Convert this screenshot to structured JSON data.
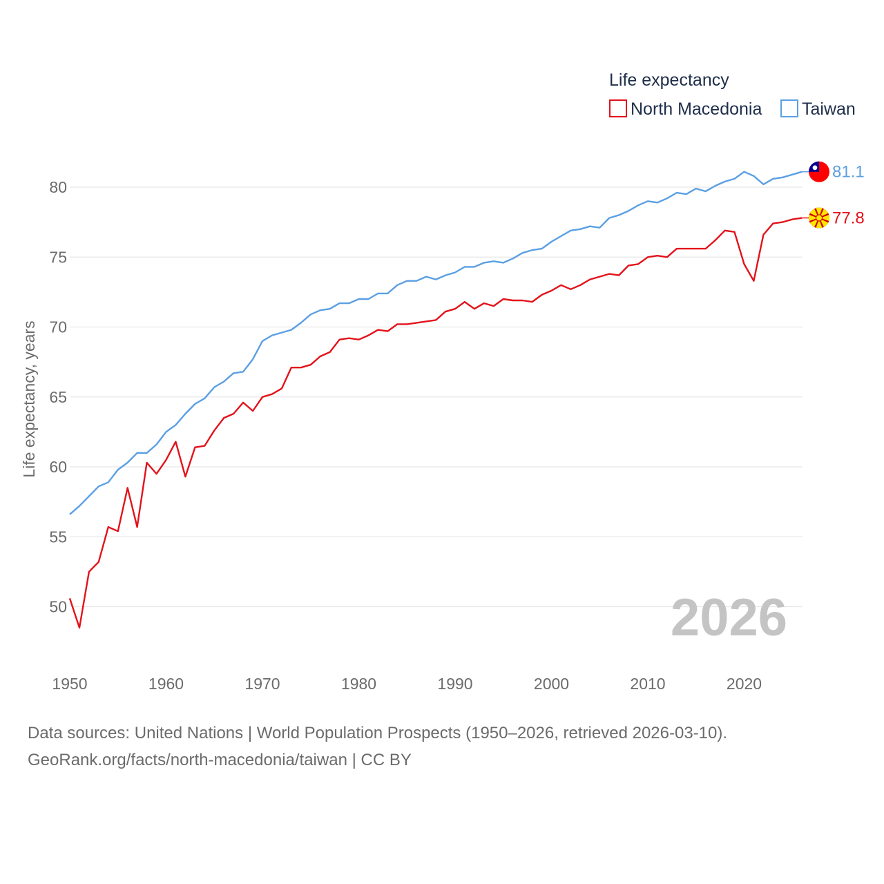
{
  "chart_data": {
    "type": "line",
    "legend_title": "Life expectancy",
    "ylabel": "Life expectancy, years",
    "year_label": "2026",
    "xlim": [
      1950,
      2026
    ],
    "ylim": [
      47,
      83
    ],
    "x_ticks": [
      1950,
      1960,
      1970,
      1980,
      1990,
      2000,
      2010,
      2020
    ],
    "y_ticks": [
      50,
      55,
      60,
      65,
      70,
      75,
      80
    ],
    "x": [
      1950,
      1951,
      1952,
      1953,
      1954,
      1955,
      1956,
      1957,
      1958,
      1959,
      1960,
      1961,
      1962,
      1963,
      1964,
      1965,
      1966,
      1967,
      1968,
      1969,
      1970,
      1971,
      1972,
      1973,
      1974,
      1975,
      1976,
      1977,
      1978,
      1979,
      1980,
      1981,
      1982,
      1983,
      1984,
      1985,
      1986,
      1987,
      1988,
      1989,
      1990,
      1991,
      1992,
      1993,
      1994,
      1995,
      1996,
      1997,
      1998,
      1999,
      2000,
      2001,
      2002,
      2003,
      2004,
      2005,
      2006,
      2007,
      2008,
      2009,
      2010,
      2011,
      2012,
      2013,
      2014,
      2015,
      2016,
      2017,
      2018,
      2019,
      2020,
      2021,
      2022,
      2023,
      2024,
      2025,
      2026
    ],
    "series": [
      {
        "name": "North Macedonia",
        "color": "#e3121a",
        "end_label": "77.8",
        "flag": "north-macedonia-flag",
        "values": [
          50.6,
          48.5,
          52.5,
          53.2,
          55.7,
          55.4,
          58.5,
          55.7,
          60.3,
          59.5,
          60.5,
          61.8,
          59.3,
          61.4,
          61.5,
          62.6,
          63.5,
          63.8,
          64.6,
          64.0,
          65.0,
          65.2,
          65.6,
          67.1,
          67.1,
          67.3,
          67.9,
          68.2,
          69.1,
          69.2,
          69.1,
          69.4,
          69.8,
          69.7,
          70.2,
          70.2,
          70.3,
          70.4,
          70.5,
          71.1,
          71.3,
          71.8,
          71.3,
          71.7,
          71.5,
          72.0,
          71.9,
          71.9,
          71.8,
          72.3,
          72.6,
          73.0,
          72.7,
          73.0,
          73.4,
          73.6,
          73.8,
          73.7,
          74.4,
          74.5,
          75.0,
          75.1,
          75.0,
          75.6,
          75.6,
          75.6,
          75.6,
          76.2,
          76.9,
          76.8,
          74.5,
          73.3,
          76.6,
          77.4,
          77.5,
          77.7,
          77.8
        ]
      },
      {
        "name": "Taiwan",
        "color": "#5b9fe3",
        "end_label": "81.1",
        "flag": "taiwan-flag",
        "values": [
          56.6,
          57.2,
          57.9,
          58.6,
          58.9,
          59.8,
          60.3,
          61.0,
          61.0,
          61.6,
          62.5,
          63.0,
          63.8,
          64.5,
          64.9,
          65.7,
          66.1,
          66.7,
          66.8,
          67.7,
          69.0,
          69.4,
          69.6,
          69.8,
          70.3,
          70.9,
          71.2,
          71.3,
          71.7,
          71.7,
          72.0,
          72.0,
          72.4,
          72.4,
          73.0,
          73.3,
          73.3,
          73.6,
          73.4,
          73.7,
          73.9,
          74.3,
          74.3,
          74.6,
          74.7,
          74.6,
          74.9,
          75.3,
          75.5,
          75.6,
          76.1,
          76.5,
          76.9,
          77.0,
          77.2,
          77.1,
          77.8,
          78.0,
          78.3,
          78.7,
          79.0,
          78.9,
          79.2,
          79.6,
          79.5,
          79.9,
          79.7,
          80.1,
          80.4,
          80.6,
          81.1,
          80.8,
          80.2,
          80.6,
          80.7,
          80.9,
          81.1
        ]
      }
    ]
  },
  "source": {
    "line1": "Data sources: United Nations | World Population Prospects (1950–2026, retrieved 2026-03-10).",
    "line2": "GeoRank.org/facts/north-macedonia/taiwan | CC BY"
  }
}
